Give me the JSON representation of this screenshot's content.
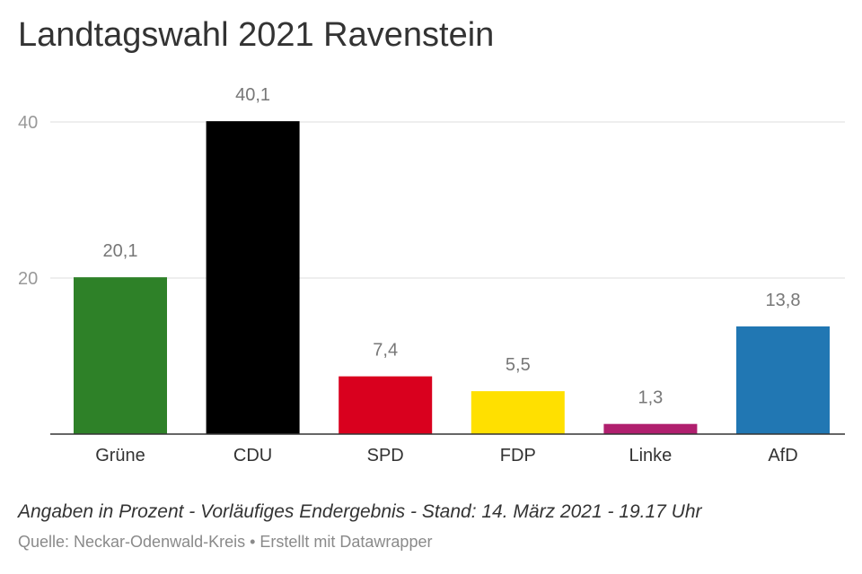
{
  "chart_data": {
    "type": "bar",
    "title": "Landtagswahl 2021 Ravenstein",
    "categories": [
      "Grüne",
      "CDU",
      "SPD",
      "FDP",
      "Linke",
      "AfD"
    ],
    "values": [
      20.1,
      40.1,
      7.4,
      5.5,
      1.3,
      13.8
    ],
    "value_labels": [
      "20,1",
      "40,1",
      "7,4",
      "5,5",
      "1,3",
      "13,8"
    ],
    "colors": [
      "#2e8128",
      "#000000",
      "#d9001e",
      "#ffe000",
      "#b01f6e",
      "#2177b3"
    ],
    "yticks": [
      20,
      40
    ],
    "ylim": [
      0,
      40.1
    ],
    "grid": true,
    "legend": "none"
  },
  "footer": {
    "notes": "Angaben in Prozent - Vorläufiges Endergebnis - Stand: 14. März 2021 - 19.17 Uhr",
    "source": "Quelle: Neckar-Odenwald-Kreis • Erstellt mit Datawrapper"
  }
}
